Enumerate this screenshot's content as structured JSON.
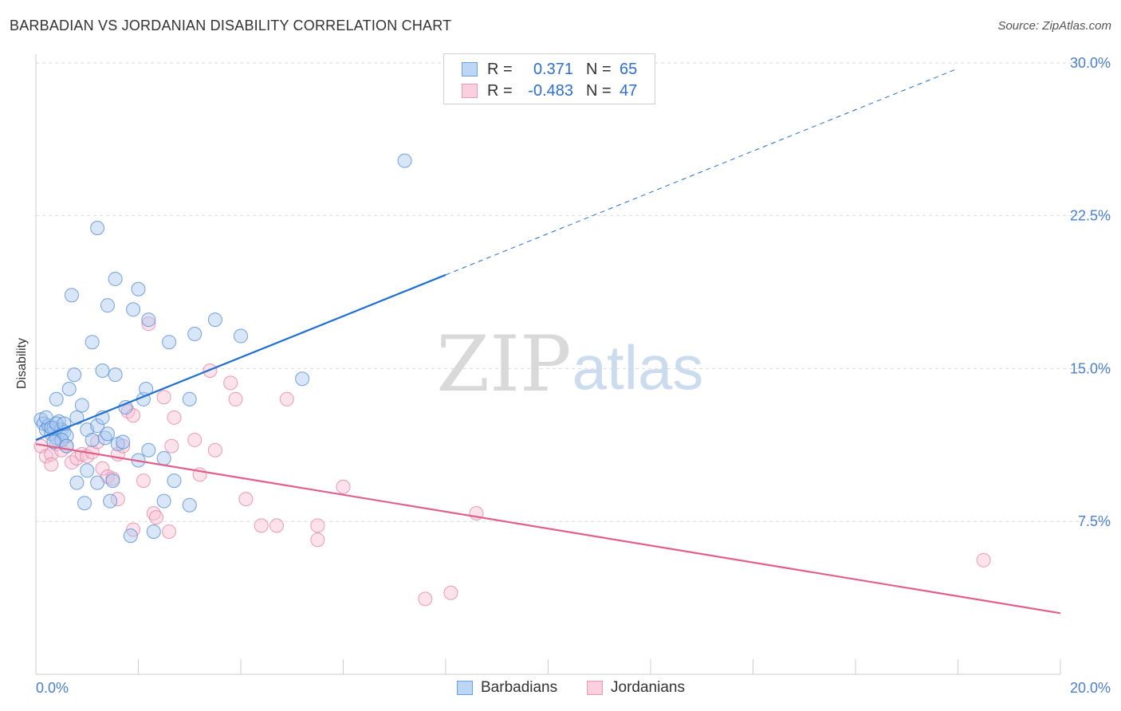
{
  "header": {
    "title": "BARBADIAN VS JORDANIAN DISABILITY CORRELATION CHART",
    "source": "Source: ZipAtlas.com"
  },
  "watermark": {
    "zip": "ZIP",
    "atlas": "atlas"
  },
  "colors": {
    "barbadian_fill": "#a8c8f0",
    "barbadian_stroke": "#4a86d4",
    "barbadian_line": "#1f6fd1",
    "jordanian_fill": "#f8c0d2",
    "jordanian_stroke": "#e27ea0",
    "jordanian_line": "#e05f8c",
    "axis_text": "#4a7fcf",
    "grid": "#dcdcdc"
  },
  "legend": {
    "rows": [
      {
        "r_label": "R =",
        "r_value": "0.371",
        "n_label": "N =",
        "n_value": "65"
      },
      {
        "r_label": "R =",
        "r_value": "-0.483",
        "n_label": "N =",
        "n_value": "47"
      }
    ]
  },
  "chart_data": {
    "type": "scatter",
    "title": "BARBADIAN VS JORDANIAN DISABILITY CORRELATION CHART",
    "xlabel": "",
    "ylabel": "Disability",
    "xlim": [
      0,
      20
    ],
    "ylim": [
      0,
      31.5
    ],
    "x_tick_labels": [
      "0.0%",
      "20.0%"
    ],
    "y_ticks": [
      7.5,
      15.0,
      22.5,
      30.0
    ],
    "y_tick_labels": [
      "7.5%",
      "15.0%",
      "22.5%",
      "30.0%"
    ],
    "legend_position": "bottom",
    "series": [
      {
        "name": "Barbadians",
        "r": 0.371,
        "n": 65,
        "trend": {
          "x0": 0.0,
          "y0": 11.5,
          "x1": 8.0,
          "y1": 19.6,
          "dashed_to_x": 18.0
        },
        "points": [
          [
            0.1,
            12.5
          ],
          [
            0.15,
            12.3
          ],
          [
            0.2,
            12.0
          ],
          [
            0.25,
            12.2
          ],
          [
            0.3,
            11.8
          ],
          [
            0.35,
            12.1
          ],
          [
            0.4,
            11.6
          ],
          [
            0.45,
            12.4
          ],
          [
            0.5,
            12.0
          ],
          [
            0.55,
            11.9
          ],
          [
            0.6,
            11.7
          ],
          [
            0.2,
            12.6
          ],
          [
            0.3,
            12.1
          ],
          [
            0.4,
            12.3
          ],
          [
            0.5,
            11.5
          ],
          [
            0.35,
            11.4
          ],
          [
            0.4,
            13.5
          ],
          [
            0.55,
            12.3
          ],
          [
            0.65,
            14.0
          ],
          [
            0.75,
            14.7
          ],
          [
            0.8,
            12.6
          ],
          [
            0.9,
            13.2
          ],
          [
            1.0,
            12.0
          ],
          [
            1.1,
            11.5
          ],
          [
            1.2,
            12.2
          ],
          [
            1.3,
            12.6
          ],
          [
            1.35,
            11.6
          ],
          [
            1.4,
            11.8
          ],
          [
            1.6,
            11.3
          ],
          [
            1.7,
            11.4
          ],
          [
            1.75,
            13.1
          ],
          [
            2.1,
            13.5
          ],
          [
            2.15,
            14.0
          ],
          [
            2.2,
            17.4
          ],
          [
            2.5,
            10.6
          ],
          [
            2.0,
            10.5
          ],
          [
            2.2,
            11.0
          ],
          [
            1.5,
            9.5
          ],
          [
            1.45,
            8.5
          ],
          [
            1.2,
            9.4
          ],
          [
            0.8,
            9.4
          ],
          [
            1.3,
            14.9
          ],
          [
            1.55,
            14.7
          ],
          [
            1.1,
            16.3
          ],
          [
            1.4,
            18.1
          ],
          [
            1.55,
            19.4
          ],
          [
            2.0,
            18.9
          ],
          [
            1.9,
            17.9
          ],
          [
            0.7,
            18.6
          ],
          [
            1.2,
            21.9
          ],
          [
            2.6,
            16.3
          ],
          [
            3.1,
            16.7
          ],
          [
            3.5,
            17.4
          ],
          [
            4.0,
            16.6
          ],
          [
            5.2,
            14.5
          ],
          [
            7.2,
            25.2
          ],
          [
            3.0,
            13.5
          ],
          [
            2.7,
            9.5
          ],
          [
            2.5,
            8.5
          ],
          [
            3.0,
            8.3
          ],
          [
            2.3,
            7.0
          ],
          [
            1.85,
            6.8
          ],
          [
            1.0,
            10.0
          ],
          [
            0.95,
            8.4
          ],
          [
            0.6,
            11.2
          ]
        ]
      },
      {
        "name": "Jordanians",
        "r": -0.483,
        "n": 47,
        "trend": {
          "x0": 0.0,
          "y0": 11.3,
          "x1": 20.0,
          "y1": 3.0
        },
        "points": [
          [
            0.1,
            11.2
          ],
          [
            0.2,
            10.7
          ],
          [
            0.3,
            10.8
          ],
          [
            0.4,
            11.3
          ],
          [
            0.5,
            11.0
          ],
          [
            0.6,
            11.2
          ],
          [
            0.7,
            10.4
          ],
          [
            0.8,
            10.6
          ],
          [
            0.9,
            10.8
          ],
          [
            1.0,
            10.7
          ],
          [
            1.1,
            10.9
          ],
          [
            1.2,
            11.4
          ],
          [
            1.3,
            10.1
          ],
          [
            1.4,
            9.7
          ],
          [
            1.5,
            9.6
          ],
          [
            1.6,
            10.8
          ],
          [
            1.7,
            11.2
          ],
          [
            1.8,
            12.9
          ],
          [
            1.9,
            12.7
          ],
          [
            2.1,
            9.5
          ],
          [
            2.2,
            17.2
          ],
          [
            2.3,
            7.9
          ],
          [
            2.35,
            7.7
          ],
          [
            2.5,
            13.6
          ],
          [
            2.6,
            7.0
          ],
          [
            2.65,
            11.2
          ],
          [
            2.7,
            12.6
          ],
          [
            3.1,
            11.5
          ],
          [
            3.2,
            9.8
          ],
          [
            3.4,
            14.9
          ],
          [
            3.5,
            11.0
          ],
          [
            3.8,
            14.3
          ],
          [
            3.9,
            13.5
          ],
          [
            4.1,
            8.6
          ],
          [
            4.4,
            7.3
          ],
          [
            4.7,
            7.3
          ],
          [
            4.9,
            13.5
          ],
          [
            5.5,
            7.3
          ],
          [
            5.5,
            6.6
          ],
          [
            6.0,
            9.2
          ],
          [
            1.6,
            8.6
          ],
          [
            0.3,
            10.3
          ],
          [
            7.6,
            3.7
          ],
          [
            8.1,
            4.0
          ],
          [
            8.6,
            7.9
          ],
          [
            18.5,
            5.6
          ],
          [
            1.9,
            7.1
          ]
        ]
      }
    ]
  },
  "axes": {
    "x_left": "0.0%",
    "x_right": "20.0%",
    "y_labels": [
      "7.5%",
      "15.0%",
      "22.5%",
      "30.0%"
    ],
    "ylabel": "Disability"
  },
  "bottom_legend": {
    "items": [
      "Barbadians",
      "Jordanians"
    ]
  }
}
